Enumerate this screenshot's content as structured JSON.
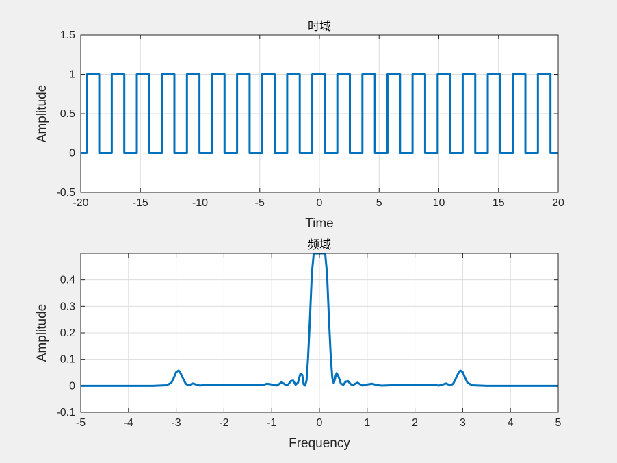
{
  "background_color": "#f0f0f0",
  "chart_data": [
    {
      "type": "line",
      "title": "时域",
      "xlabel": "Time",
      "ylabel": "Amplitude",
      "xlim": [
        -20,
        20
      ],
      "ylim": [
        -0.5,
        1.5
      ],
      "xticks": [
        -20,
        -15,
        -10,
        -5,
        0,
        5,
        10,
        15,
        20
      ],
      "yticks": [
        -0.5,
        0,
        0.5,
        1,
        1.5
      ],
      "xtick_labels": [
        "-20",
        "-15",
        "-10",
        "-5",
        "0",
        "5",
        "10",
        "15",
        "20"
      ],
      "ytick_labels": [
        "-0.5",
        "0",
        "0.5",
        "1",
        "1.5"
      ],
      "grid": true,
      "color": "#0072BD",
      "series": [
        {
          "kind": "square_wave",
          "x_range": [
            -20,
            20
          ],
          "low": 0,
          "high": 1,
          "period": 2.1,
          "duty": 0.5,
          "first_rise": -19.5
        }
      ]
    },
    {
      "type": "line",
      "title": "频域",
      "xlabel": "Frequency",
      "ylabel": "Amplitude",
      "xlim": [
        -5,
        5
      ],
      "ylim": [
        -0.1,
        0.5
      ],
      "xticks": [
        -5,
        -4,
        -3,
        -2,
        -1,
        0,
        1,
        2,
        3,
        4,
        5
      ],
      "yticks": [
        -0.1,
        0,
        0.1,
        0.2,
        0.3,
        0.4
      ],
      "xtick_labels": [
        "-5",
        "-4",
        "-3",
        "-2",
        "-1",
        "0",
        "1",
        "2",
        "3",
        "4",
        "5"
      ],
      "ytick_labels": [
        "-0.1",
        "0",
        "0.1",
        "0.2",
        "0.3",
        "0.4"
      ],
      "grid": true,
      "color": "#0072BD",
      "series": [
        {
          "x": [
            -5,
            -4.5,
            -4,
            -3.5,
            -3.2,
            -3.1,
            -3.05,
            -3.0,
            -2.95,
            -2.9,
            -2.85,
            -2.8,
            -2.75,
            -2.7,
            -2.65,
            -2.6,
            -2.5,
            -2.4,
            -2.2,
            -2.0,
            -1.8,
            -1.5,
            -1.3,
            -1.2,
            -1.1,
            -1.0,
            -0.9,
            -0.85,
            -0.8,
            -0.75,
            -0.7,
            -0.65,
            -0.6,
            -0.55,
            -0.5,
            -0.45,
            -0.4,
            -0.36,
            -0.33,
            -0.3,
            -0.27,
            -0.24,
            -0.2,
            -0.16,
            -0.12,
            -0.09,
            -0.06,
            -0.03,
            0.0,
            0.03,
            0.06,
            0.09,
            0.12,
            0.16,
            0.2,
            0.24,
            0.27,
            0.3,
            0.33,
            0.36,
            0.4,
            0.45,
            0.5,
            0.55,
            0.6,
            0.65,
            0.7,
            0.75,
            0.8,
            0.85,
            0.9,
            1.0,
            1.1,
            1.2,
            1.3,
            1.5,
            1.8,
            2.0,
            2.2,
            2.4,
            2.5,
            2.6,
            2.65,
            2.7,
            2.75,
            2.8,
            2.85,
            2.9,
            2.95,
            3.0,
            3.05,
            3.1,
            3.2,
            3.5,
            4.0,
            4.5,
            5.0
          ],
          "y": [
            0,
            0,
            0,
            0,
            0.002,
            0.012,
            0.03,
            0.052,
            0.058,
            0.045,
            0.025,
            0.008,
            0.002,
            0.005,
            0.009,
            0.006,
            0.001,
            0.004,
            0.002,
            0.004,
            0.002,
            0.003,
            0.004,
            0.002,
            0.008,
            0.005,
            0.001,
            0.006,
            0.013,
            0.009,
            0.002,
            0.006,
            0.018,
            0.02,
            0.004,
            0.012,
            0.045,
            0.042,
            0.006,
            0.001,
            0.02,
            0.1,
            0.25,
            0.42,
            0.5,
            0.5,
            0.5,
            0.5,
            0.5,
            0.5,
            0.5,
            0.5,
            0.5,
            0.42,
            0.25,
            0.1,
            0.03,
            0.01,
            0.03,
            0.048,
            0.035,
            0.008,
            0.004,
            0.016,
            0.018,
            0.007,
            0.002,
            0.008,
            0.012,
            0.006,
            0.001,
            0.005,
            0.008,
            0.003,
            0.001,
            0.002,
            0.003,
            0.004,
            0.002,
            0.004,
            0.001,
            0.006,
            0.009,
            0.005,
            0.002,
            0.008,
            0.025,
            0.045,
            0.058,
            0.052,
            0.03,
            0.012,
            0.002,
            0,
            0,
            0,
            0
          ]
        }
      ]
    }
  ]
}
